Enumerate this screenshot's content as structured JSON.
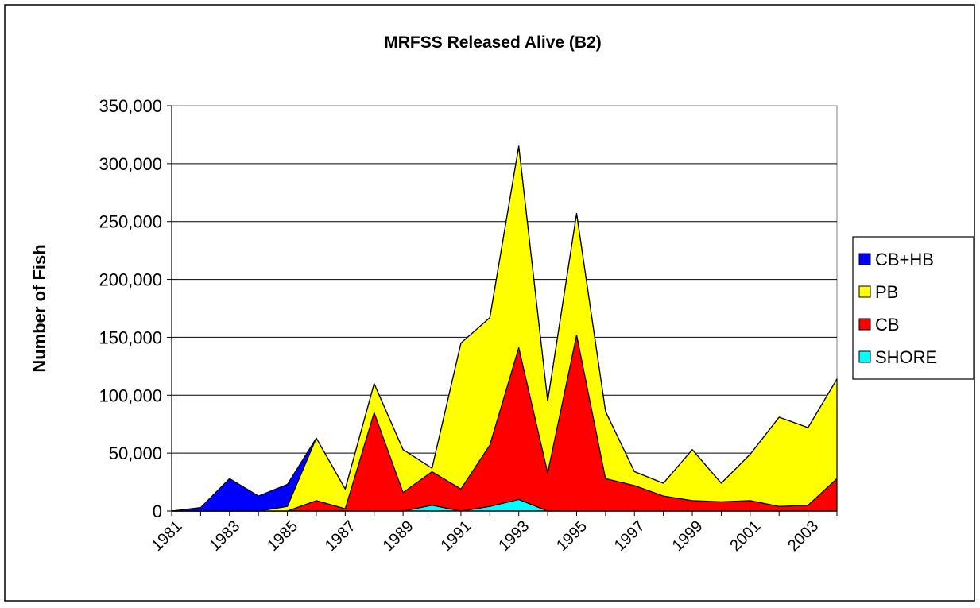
{
  "chart_data": {
    "type": "stacked-area",
    "title": "MRFSS Released Alive (B2)",
    "y_label": "Number of Fish",
    "categories": [
      "1981",
      null,
      "1983",
      null,
      "1985",
      null,
      "1987",
      null,
      "1989",
      null,
      "1991",
      null,
      "1993",
      null,
      "1995",
      null,
      "1997",
      null,
      "1999",
      null,
      "2001",
      null,
      "2003",
      null
    ],
    "series": [
      {
        "name": "SHORE",
        "color": "#00ffff",
        "values": [
          0,
          0,
          0,
          0,
          0,
          0,
          0,
          0,
          0,
          5000,
          0,
          4000,
          10000,
          0,
          0,
          0,
          0,
          0,
          0,
          0,
          0,
          0,
          0,
          0
        ]
      },
      {
        "name": "CB",
        "color": "#ff0000",
        "values": [
          0,
          0,
          0,
          0,
          0,
          9000,
          2000,
          85000,
          16000,
          29000,
          19000,
          53000,
          131000,
          33000,
          152000,
          28000,
          22000,
          13000,
          9000,
          8000,
          9000,
          4000,
          5000,
          28000
        ]
      },
      {
        "name": "PB",
        "color": "#ffff00",
        "values": [
          0,
          0,
          0,
          0,
          4000,
          54000,
          17000,
          25000,
          37000,
          3000,
          126000,
          110000,
          174000,
          62000,
          105000,
          58000,
          12000,
          11000,
          44000,
          16000,
          40000,
          77000,
          67000,
          86000
        ]
      },
      {
        "name": "CB+HB",
        "color": "#0000ff",
        "values": [
          0,
          3000,
          28000,
          13000,
          19000,
          0,
          0,
          0,
          0,
          0,
          0,
          0,
          0,
          0,
          0,
          0,
          0,
          0,
          0,
          0,
          0,
          0,
          0,
          0
        ]
      }
    ],
    "ylim": [
      0,
      350000
    ],
    "yticks": [
      0,
      {
        "value": 50000,
        "label": "50,000"
      },
      {
        "value": 100000,
        "label": "100,000"
      },
      {
        "value": 150000,
        "label": "150,000"
      },
      {
        "value": 200000,
        "label": "200,000"
      },
      {
        "value": 250000,
        "label": "250,000"
      },
      {
        "value": 300000,
        "label": "300,000"
      },
      {
        "value": 350000,
        "label": "350,000"
      }
    ],
    "grid": true,
    "legend": "right"
  }
}
